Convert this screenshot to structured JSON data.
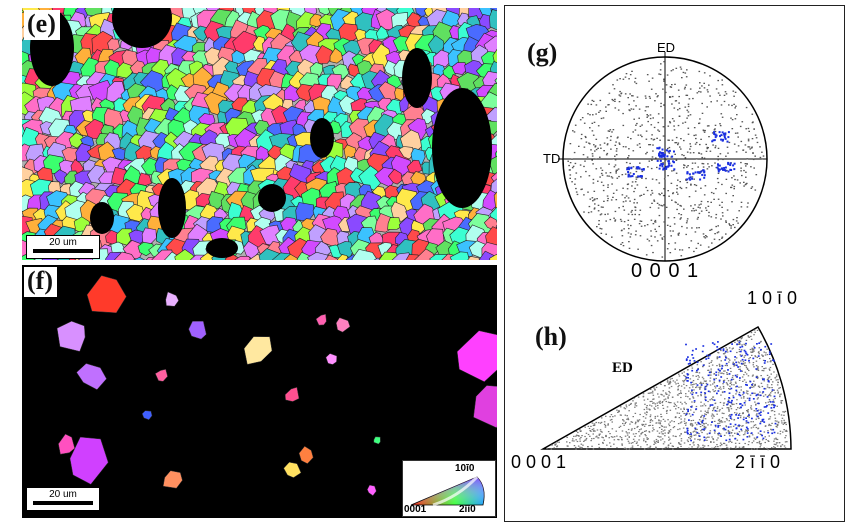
{
  "panels": {
    "e": {
      "label": "(e)",
      "scale_bar": "20 um"
    },
    "f": {
      "label": "(f)",
      "scale_bar": "20 um",
      "legend": {
        "top": "10ī0",
        "left": "0001",
        "right": "2īī0"
      }
    },
    "g": {
      "label": "(g)",
      "axis_top": "ED",
      "axis_left": "TD",
      "pole_label": "0 0 0 1",
      "corner_label": "1 0 ī 0"
    },
    "h": {
      "label": "(h)",
      "axis": "ED",
      "corner_left": "0 0 0 1",
      "corner_right": "2 ī ī 0"
    }
  },
  "colors": {
    "highlight": "#1a2fe0",
    "points": "#555555",
    "background": "#000000"
  }
}
